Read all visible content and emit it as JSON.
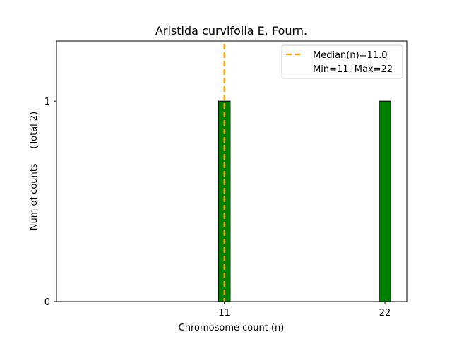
{
  "chart_data": {
    "type": "bar",
    "title": "Aristida curvifolia E. Fourn.",
    "xlabel": "Chromosome count (n)",
    "ylabel": "Num of counts     (Total 2)",
    "x": [
      11,
      22
    ],
    "values": [
      1,
      1
    ],
    "xticks": [
      "11",
      "22"
    ],
    "yticks": [
      "0",
      "1"
    ],
    "xlim": [
      -0.5,
      23.5
    ],
    "ylim": [
      0,
      1.3
    ],
    "bar_color": "#008000",
    "median": 11.0,
    "median_color": "#FFA500",
    "legend": {
      "position": "top-right",
      "entries": [
        "Median(n)=11.0",
        "Min=11, Max=22"
      ]
    },
    "grid": false
  }
}
